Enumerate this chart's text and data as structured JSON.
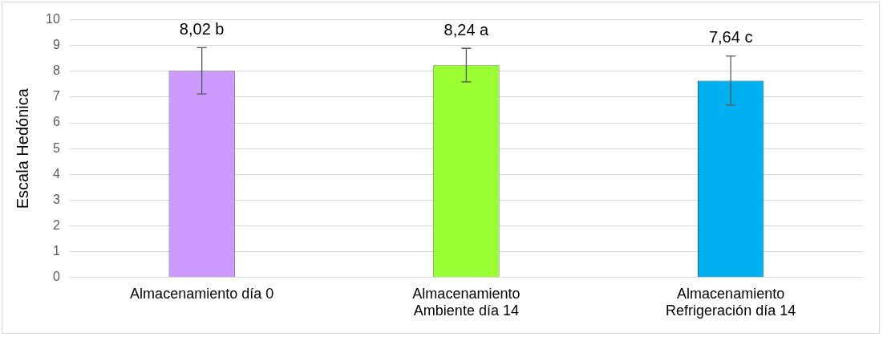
{
  "chart_data": {
    "type": "bar",
    "ylabel": "Escala Hedónica",
    "categories": [
      "Almacenamiento día 0",
      "Almacenamiento Ambiente día 14",
      "Almacenamiento Refrigeración día 14"
    ],
    "values": [
      8.02,
      8.24,
      7.64
    ],
    "errors": [
      0.9,
      0.65,
      0.95
    ],
    "value_labels": [
      "8,02 b",
      "8,24 a",
      "7,64 c"
    ],
    "colors": [
      "#cc99ff",
      "#99ff33",
      "#00b0f0"
    ],
    "ylim": [
      0,
      10
    ],
    "yticks": [
      0,
      1,
      2,
      3,
      4,
      5,
      6,
      7,
      8,
      9,
      10
    ],
    "grid": "y",
    "legend": false
  }
}
